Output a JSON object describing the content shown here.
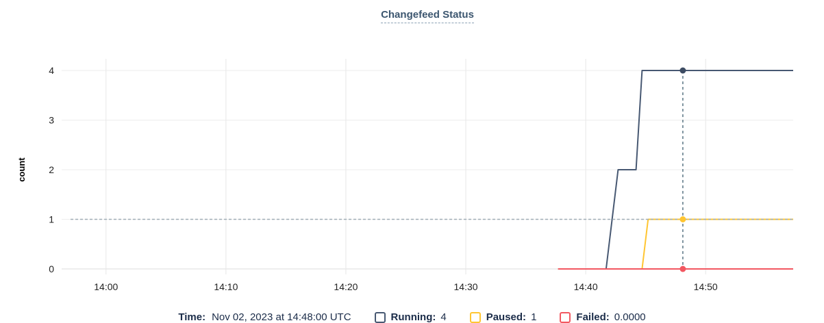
{
  "title": "Changefeed Status",
  "chart_data": {
    "type": "line",
    "title": "Changefeed Status",
    "xlabel": "",
    "ylabel": "count",
    "ylim": [
      0,
      4
    ],
    "yticks": [
      0,
      1,
      2,
      3,
      4
    ],
    "grid": true,
    "x_axis": {
      "unit": "minutes after 14:00 UTC",
      "xlim_minutes": [
        -3.7,
        57.3
      ],
      "tick_minutes": [
        0,
        10,
        20,
        30,
        40,
        50
      ],
      "tick_labels": [
        "14:00",
        "14:10",
        "14:20",
        "14:30",
        "14:40",
        "14:50"
      ]
    },
    "series": [
      {
        "name": "Running",
        "color": "#475872",
        "dot_color": "#3d4c63",
        "points": [
          [
            37.7,
            0
          ],
          [
            41.7,
            0
          ],
          [
            42.7,
            2
          ],
          [
            44.2,
            2
          ],
          [
            44.7,
            4
          ],
          [
            57.3,
            4
          ]
        ]
      },
      {
        "name": "Paused",
        "color": "#ffc531",
        "dot_color": "#ffc531",
        "points": [
          [
            37.7,
            0
          ],
          [
            44.7,
            0
          ],
          [
            45.2,
            1
          ],
          [
            57.3,
            1
          ]
        ]
      },
      {
        "name": "Failed",
        "color": "#f25760",
        "dot_color": "#f25760",
        "points": [
          [
            37.7,
            0
          ],
          [
            57.3,
            0
          ]
        ]
      }
    ],
    "hover": {
      "time_minutes": 48.1,
      "guide_value": 1,
      "dots": [
        {
          "series": "Running",
          "value": 4
        },
        {
          "series": "Paused",
          "value": 1
        },
        {
          "series": "Failed",
          "value": 0
        }
      ]
    },
    "legend_position": "bottom"
  },
  "tooltip": {
    "time_label": "Time:",
    "time_value": "Nov 02, 2023 at 14:48:00 UTC",
    "entries": [
      {
        "label": "Running:",
        "value": "4",
        "color": "#475872"
      },
      {
        "label": "Paused:",
        "value": "1",
        "color": "#ffc531"
      },
      {
        "label": "Failed:",
        "value": "0.0000",
        "color": "#f25760"
      }
    ]
  },
  "colors": {
    "title_text": "#3c566f",
    "legend_text": "#1b2c49",
    "axis_text": "#222222",
    "gridline": "#ededed",
    "axis_line": "#dcdcdc",
    "value_guide": "#9fadb6",
    "hover_guide": "#4e6b7a",
    "running": "#475872",
    "paused": "#ffc531",
    "failed": "#f25760"
  }
}
